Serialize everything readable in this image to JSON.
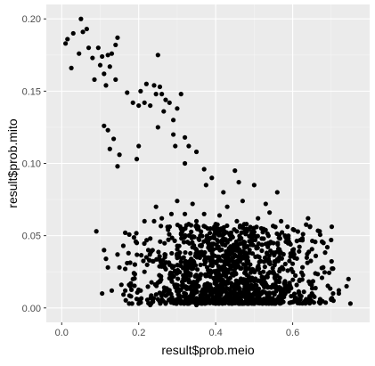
{
  "chart_data": {
    "type": "scatter",
    "title": "",
    "xlabel": "result$prob.meio",
    "ylabel": "result$prob.mito",
    "xlim": [
      -0.04,
      0.8
    ],
    "ylim": [
      -0.01,
      0.21
    ],
    "x_ticks": [
      0.0,
      0.2,
      0.4,
      0.6
    ],
    "x_tick_labels": [
      "0.0",
      "0.2",
      "0.4",
      "0.6"
    ],
    "y_ticks": [
      0.0,
      0.05,
      0.1,
      0.15,
      0.2
    ],
    "y_tick_labels": [
      "0.00",
      "0.05",
      "0.10",
      "0.15",
      "0.20"
    ],
    "grid": true,
    "legend": "none",
    "colors": {
      "panel": "#ebebeb",
      "grid_major": "#ffffff",
      "grid_minor": "#f5f5f5",
      "point": "#000000"
    },
    "points": [
      [
        0.01,
        0.183
      ],
      [
        0.015,
        0.186
      ],
      [
        0.025,
        0.166
      ],
      [
        0.03,
        0.19
      ],
      [
        0.045,
        0.176
      ],
      [
        0.05,
        0.2
      ],
      [
        0.055,
        0.191
      ],
      [
        0.065,
        0.193
      ],
      [
        0.07,
        0.18
      ],
      [
        0.08,
        0.173
      ],
      [
        0.085,
        0.158
      ],
      [
        0.095,
        0.18
      ],
      [
        0.1,
        0.168
      ],
      [
        0.105,
        0.174
      ],
      [
        0.11,
        0.162
      ],
      [
        0.115,
        0.154
      ],
      [
        0.12,
        0.175
      ],
      [
        0.125,
        0.167
      ],
      [
        0.13,
        0.176
      ],
      [
        0.14,
        0.182
      ],
      [
        0.145,
        0.187
      ],
      [
        0.14,
        0.158
      ],
      [
        0.11,
        0.126
      ],
      [
        0.12,
        0.123
      ],
      [
        0.125,
        0.11
      ],
      [
        0.135,
        0.117
      ],
      [
        0.15,
        0.106
      ],
      [
        0.145,
        0.098
      ],
      [
        0.09,
        0.053
      ],
      [
        0.11,
        0.04
      ],
      [
        0.115,
        0.034
      ],
      [
        0.12,
        0.028
      ],
      [
        0.105,
        0.01
      ],
      [
        0.13,
        0.012
      ],
      [
        0.145,
        0.037
      ],
      [
        0.15,
        0.028
      ],
      [
        0.17,
        0.149
      ],
      [
        0.185,
        0.142
      ],
      [
        0.2,
        0.14
      ],
      [
        0.205,
        0.15
      ],
      [
        0.215,
        0.142
      ],
      [
        0.22,
        0.155
      ],
      [
        0.23,
        0.14
      ],
      [
        0.24,
        0.154
      ],
      [
        0.245,
        0.148
      ],
      [
        0.25,
        0.175
      ],
      [
        0.255,
        0.153
      ],
      [
        0.26,
        0.148
      ],
      [
        0.265,
        0.136
      ],
      [
        0.27,
        0.144
      ],
      [
        0.28,
        0.142
      ],
      [
        0.29,
        0.13
      ],
      [
        0.3,
        0.138
      ],
      [
        0.31,
        0.148
      ],
      [
        0.195,
        0.103
      ],
      [
        0.2,
        0.112
      ],
      [
        0.25,
        0.125
      ],
      [
        0.29,
        0.12
      ],
      [
        0.295,
        0.112
      ],
      [
        0.32,
        0.118
      ],
      [
        0.32,
        0.1
      ],
      [
        0.33,
        0.112
      ],
      [
        0.35,
        0.108
      ],
      [
        0.37,
        0.096
      ],
      [
        0.375,
        0.085
      ],
      [
        0.39,
        0.09
      ],
      [
        0.42,
        0.08
      ],
      [
        0.46,
        0.087
      ],
      [
        0.47,
        0.074
      ],
      [
        0.45,
        0.095
      ],
      [
        0.5,
        0.085
      ],
      [
        0.53,
        0.072
      ],
      [
        0.56,
        0.08
      ],
      [
        0.175,
        0.016
      ],
      [
        0.185,
        0.02
      ],
      [
        0.19,
        0.03
      ],
      [
        0.205,
        0.012
      ],
      [
        0.215,
        0.025
      ],
      [
        0.225,
        0.04
      ],
      [
        0.23,
        0.048
      ],
      [
        0.24,
        0.06
      ],
      [
        0.245,
        0.07
      ],
      [
        0.26,
        0.062
      ],
      [
        0.275,
        0.056
      ],
      [
        0.285,
        0.065
      ],
      [
        0.3,
        0.074
      ],
      [
        0.31,
        0.055
      ],
      [
        0.32,
        0.065
      ],
      [
        0.33,
        0.058
      ],
      [
        0.34,
        0.072
      ],
      [
        0.35,
        0.06
      ],
      [
        0.36,
        0.05
      ],
      [
        0.37,
        0.065
      ],
      [
        0.38,
        0.045
      ],
      [
        0.4,
        0.058
      ],
      [
        0.41,
        0.064
      ],
      [
        0.43,
        0.07
      ],
      [
        0.44,
        0.052
      ],
      [
        0.455,
        0.06
      ],
      [
        0.47,
        0.045
      ],
      [
        0.48,
        0.058
      ],
      [
        0.5,
        0.05
      ],
      [
        0.51,
        0.062
      ],
      [
        0.52,
        0.048
      ],
      [
        0.54,
        0.066
      ],
      [
        0.555,
        0.056
      ],
      [
        0.57,
        0.06
      ],
      [
        0.58,
        0.05
      ],
      [
        0.6,
        0.04
      ],
      [
        0.62,
        0.047
      ],
      [
        0.64,
        0.062
      ],
      [
        0.66,
        0.036
      ],
      [
        0.67,
        0.053
      ],
      [
        0.68,
        0.045
      ],
      [
        0.69,
        0.042
      ],
      [
        0.7,
        0.047
      ],
      [
        0.635,
        0.006
      ],
      [
        0.65,
        0.01
      ],
      [
        0.705,
        0.01
      ],
      [
        0.72,
        0.01
      ],
      [
        0.74,
        0.015
      ],
      [
        0.75,
        0.003
      ],
      [
        0.745,
        0.02
      ],
      [
        0.165,
        0.012
      ],
      [
        0.18,
        0.008
      ],
      [
        0.2,
        0.003
      ],
      [
        0.23,
        0.002
      ],
      [
        0.25,
        0.006
      ],
      [
        0.27,
        0.003
      ],
      [
        0.3,
        0.006
      ],
      [
        0.32,
        0.004
      ],
      [
        0.35,
        0.002
      ],
      [
        0.38,
        0.006
      ],
      [
        0.4,
        0.003
      ],
      [
        0.43,
        0.006
      ],
      [
        0.46,
        0.003
      ],
      [
        0.5,
        0.005
      ],
      [
        0.53,
        0.004
      ],
      [
        0.56,
        0.006
      ],
      [
        0.6,
        0.004
      ],
      [
        0.62,
        0.006
      ],
      [
        0.16,
        0.043
      ],
      [
        0.165,
        0.052
      ],
      [
        0.17,
        0.031
      ],
      [
        0.195,
        0.045
      ],
      [
        0.215,
        0.06
      ],
      [
        0.22,
        0.035
      ],
      [
        0.155,
        0.016
      ],
      [
        0.165,
        0.027
      ]
    ]
  }
}
